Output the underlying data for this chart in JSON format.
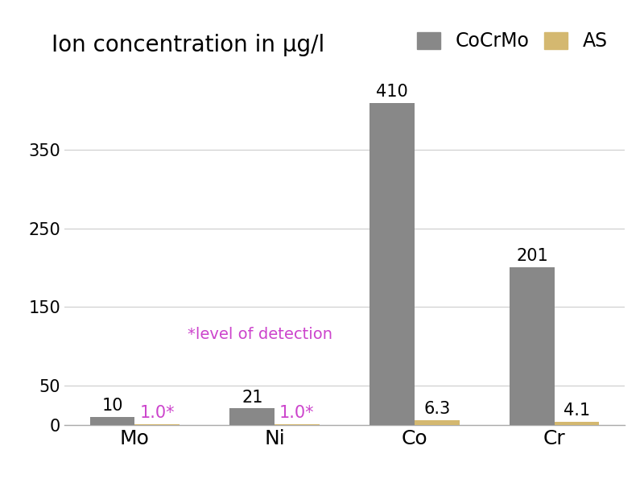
{
  "categories": [
    "Mo",
    "Ni",
    "Co",
    "Cr"
  ],
  "cocrmo_values": [
    10,
    21,
    410,
    201
  ],
  "as_values": [
    1.0,
    1.0,
    6.3,
    4.1
  ],
  "as_labels": [
    "1.0*",
    "1.0*",
    "6.3",
    "4.1"
  ],
  "cocrmo_color": "#888888",
  "as_color": "#D4B870",
  "title": "Ion concentration in μg/l",
  "legend_cocrmo": "CoCrMo",
  "legend_as": "AS",
  "annotation_text": "*level of detection",
  "annotation_color": "#CC44CC",
  "ylim": [
    0,
    430
  ],
  "yticks": [
    0,
    50,
    150,
    250,
    350
  ],
  "bar_width": 0.32,
  "background_color": "#ffffff",
  "title_fontsize": 20,
  "label_fontsize": 15,
  "tick_fontsize": 15,
  "legend_fontsize": 17
}
